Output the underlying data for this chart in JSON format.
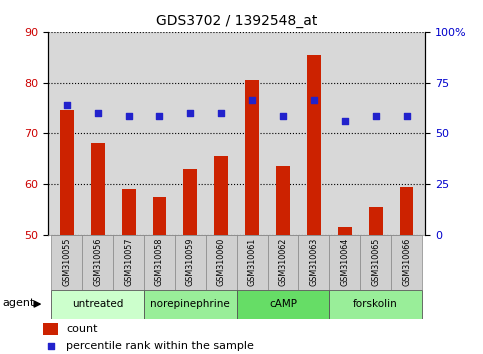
{
  "title": "GDS3702 / 1392548_at",
  "samples": [
    "GSM310055",
    "GSM310056",
    "GSM310057",
    "GSM310058",
    "GSM310059",
    "GSM310060",
    "GSM310061",
    "GSM310062",
    "GSM310063",
    "GSM310064",
    "GSM310065",
    "GSM310066"
  ],
  "counts": [
    74.5,
    68.0,
    59.0,
    57.5,
    63.0,
    65.5,
    80.5,
    63.5,
    85.5,
    51.5,
    55.5,
    59.5
  ],
  "percentile_ranks_left": [
    75.5,
    74.0,
    73.5,
    73.5,
    74.0,
    74.0,
    76.5,
    73.5,
    76.5,
    72.5,
    73.5,
    73.5
  ],
  "ylim_left": [
    50,
    90
  ],
  "ylim_right": [
    0,
    100
  ],
  "yticks_left": [
    50,
    60,
    70,
    80,
    90
  ],
  "yticks_right": [
    0,
    25,
    50,
    75,
    100
  ],
  "ytick_labels_right": [
    "0",
    "25",
    "50",
    "75",
    "100%"
  ],
  "bar_color": "#cc2200",
  "dot_color": "#2222cc",
  "agent_groups": [
    {
      "label": "untreated",
      "start": 0,
      "end": 3,
      "color": "#ccffcc"
    },
    {
      "label": "norepinephrine",
      "start": 3,
      "end": 6,
      "color": "#99ee99"
    },
    {
      "label": "cAMP",
      "start": 6,
      "end": 9,
      "color": "#66dd66"
    },
    {
      "label": "forskolin",
      "start": 9,
      "end": 12,
      "color": "#99ee99"
    }
  ],
  "bg_color": "#ffffff",
  "plot_bg_color": "#d8d8d8",
  "bar_width": 0.45,
  "legend_count_color": "#cc2200",
  "legend_dot_color": "#2222cc",
  "agent_groups_all_color": "#99ee99"
}
